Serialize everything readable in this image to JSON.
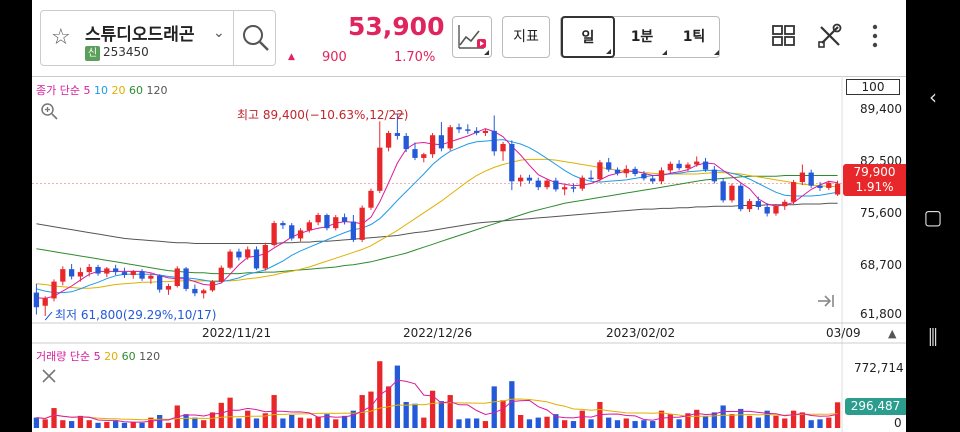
{
  "stock": {
    "name": "스튜디오드래곤",
    "market_badge": "신",
    "code": "253450",
    "price": "53,900",
    "change": "900",
    "change_rate": "1.70%"
  },
  "toolbar": {
    "indicator_label": "지표",
    "periods": [
      {
        "label": "일",
        "selected": true
      },
      {
        "label": "1분",
        "selected": false
      },
      {
        "label": "1틱",
        "selected": false
      }
    ]
  },
  "price_panel": {
    "legend_prefix": "종가 단순",
    "ma_periods": [
      {
        "label": "5",
        "color": "#d81b9e"
      },
      {
        "label": "10",
        "color": "#1e9be8"
      },
      {
        "label": "20",
        "color": "#e0b000"
      },
      {
        "label": "60",
        "color": "#2e8b2e"
      },
      {
        "label": "120",
        "color": "#555555"
      }
    ],
    "zoom_value": "100",
    "y_labels": [
      "89,400",
      "82,500",
      "75,600",
      "68,700",
      "61,800"
    ],
    "last_price": "79,900",
    "last_rate": "1.91%",
    "high_annotation": "최고 89,400(−10.63%,12/22)",
    "low_annotation": "최저 61,800(29.29%,10/17)",
    "x_labels": [
      "2022/11/21",
      "2022/12/26",
      "2023/02/02",
      "03/09"
    ]
  },
  "volume_panel": {
    "legend_prefix": "거래량 단순",
    "ma_periods": [
      {
        "label": "5",
        "color": "#d81b9e"
      },
      {
        "label": "20",
        "color": "#e0b000"
      },
      {
        "label": "60",
        "color": "#2e8b2e"
      },
      {
        "label": "120",
        "color": "#555555"
      }
    ],
    "y_labels": [
      "772,714",
      "0"
    ],
    "last_volume": "296,487"
  },
  "colors": {
    "up": "#e8272b",
    "down": "#2459d8",
    "accent": "#e0245e"
  },
  "chart_data": {
    "type": "candlestick",
    "ylim": [
      61800,
      89400
    ],
    "ohlc": [
      [
        65000,
        66200,
        62000,
        63000
      ],
      [
        63200,
        64500,
        61800,
        64200
      ],
      [
        64200,
        66800,
        63800,
        66500
      ],
      [
        66500,
        68600,
        66000,
        68200
      ],
      [
        68200,
        68900,
        66800,
        67200
      ],
      [
        67200,
        68400,
        66500,
        67800
      ],
      [
        67800,
        68900,
        67200,
        68500
      ],
      [
        68500,
        68800,
        67300,
        67600
      ],
      [
        67600,
        68500,
        67100,
        68300
      ],
      [
        68300,
        68800,
        67400,
        67800
      ],
      [
        67800,
        68400,
        67000,
        67400
      ],
      [
        67400,
        68100,
        66900,
        67900
      ],
      [
        67900,
        68200,
        66600,
        66900
      ],
      [
        66900,
        67600,
        66200,
        67300
      ],
      [
        67300,
        67500,
        65000,
        65400
      ],
      [
        65400,
        66200,
        64700,
        65900
      ],
      [
        65900,
        68600,
        65700,
        68300
      ],
      [
        68300,
        68500,
        65200,
        65500
      ],
      [
        65500,
        66100,
        64500,
        64900
      ],
      [
        64900,
        65500,
        64200,
        65300
      ],
      [
        65300,
        66700,
        65100,
        66500
      ],
      [
        66500,
        68700,
        66300,
        68400
      ],
      [
        68400,
        70900,
        68200,
        70600
      ],
      [
        70600,
        71000,
        69400,
        69800
      ],
      [
        69800,
        71300,
        69500,
        70900
      ],
      [
        70900,
        71300,
        68100,
        68300
      ],
      [
        68300,
        71800,
        68000,
        71500
      ],
      [
        71500,
        74800,
        71300,
        74500
      ],
      [
        74500,
        74800,
        73700,
        74200
      ],
      [
        74200,
        74500,
        72100,
        72400
      ],
      [
        72400,
        73800,
        72000,
        73500
      ],
      [
        73500,
        74900,
        73200,
        74600
      ],
      [
        74600,
        75900,
        74200,
        75600
      ],
      [
        75600,
        75800,
        73500,
        73800
      ],
      [
        73800,
        75600,
        73500,
        75300
      ],
      [
        75300,
        75800,
        74300,
        74700
      ],
      [
        74700,
        75600,
        71900,
        72200
      ],
      [
        72200,
        76900,
        71900,
        76600
      ],
      [
        76600,
        79200,
        76300,
        78900
      ],
      [
        78900,
        88400,
        78600,
        84800
      ],
      [
        84800,
        87100,
        84300,
        86800
      ],
      [
        86800,
        89400,
        85900,
        86400
      ],
      [
        86400,
        86800,
        84200,
        84600
      ],
      [
        84600,
        85500,
        83100,
        83400
      ],
      [
        83400,
        84100,
        82800,
        83900
      ],
      [
        83900,
        86800,
        83400,
        86500
      ],
      [
        86500,
        88300,
        84300,
        84700
      ],
      [
        84700,
        87900,
        84400,
        87600
      ],
      [
        87600,
        88100,
        86800,
        87300
      ],
      [
        87300,
        88000,
        86700,
        87100
      ],
      [
        87100,
        87600,
        86500,
        86800
      ],
      [
        86800,
        87400,
        86400,
        87100
      ],
      [
        87100,
        89200,
        83700,
        84300
      ],
      [
        84300,
        85600,
        83000,
        85300
      ],
      [
        85300,
        85800,
        79000,
        80200
      ],
      [
        80200,
        81100,
        79500,
        80700
      ],
      [
        80700,
        81100,
        79900,
        80300
      ],
      [
        80300,
        80700,
        79000,
        79400
      ],
      [
        79400,
        80600,
        79100,
        80300
      ],
      [
        80300,
        80700,
        78800,
        79100
      ],
      [
        79100,
        79700,
        78300,
        79400
      ],
      [
        79400,
        79900,
        78700,
        79200
      ],
      [
        79200,
        81000,
        78900,
        80700
      ],
      [
        80700,
        81700,
        80300,
        80500
      ],
      [
        80500,
        83100,
        80200,
        82800
      ],
      [
        82800,
        83400,
        81500,
        81800
      ],
      [
        81800,
        82100,
        81000,
        81300
      ],
      [
        81300,
        82400,
        80700,
        81900
      ],
      [
        81900,
        82200,
        80900,
        81200
      ],
      [
        81200,
        81600,
        80300,
        80600
      ],
      [
        80600,
        81100,
        79900,
        80200
      ],
      [
        80200,
        82100,
        79800,
        81700
      ],
      [
        81700,
        82900,
        81300,
        82600
      ],
      [
        82600,
        83100,
        81700,
        82000
      ],
      [
        82000,
        82800,
        81600,
        82500
      ],
      [
        82500,
        83600,
        82200,
        82900
      ],
      [
        82900,
        83400,
        81500,
        81800
      ],
      [
        81800,
        82300,
        79900,
        80200
      ],
      [
        80200,
        80600,
        77300,
        77600
      ],
      [
        77600,
        79900,
        77300,
        79600
      ],
      [
        79600,
        79900,
        76100,
        76400
      ],
      [
        76400,
        77800,
        76000,
        77500
      ],
      [
        77500,
        78100,
        76300,
        76700
      ],
      [
        76700,
        77200,
        75400,
        75800
      ],
      [
        75800,
        77100,
        75500,
        76800
      ],
      [
        76800,
        77700,
        76300,
        77400
      ],
      [
        77400,
        80400,
        77100,
        80100
      ],
      [
        80100,
        82500,
        79700,
        81400
      ],
      [
        81400,
        81800,
        79300,
        79600
      ],
      [
        79600,
        80100,
        78900,
        79300
      ],
      [
        79300,
        80200,
        79000,
        80000
      ],
      [
        78400,
        80300,
        78200,
        79900
      ]
    ],
    "ma5": [
      64300,
      64200,
      64500,
      65200,
      65900,
      66700,
      67500,
      67900,
      67900,
      67900,
      67900,
      67900,
      67900,
      67700,
      67300,
      67000,
      66900,
      66900,
      66500,
      66100,
      66000,
      66300,
      67500,
      68800,
      69800,
      70000,
      70300,
      71100,
      71800,
      72600,
      73100,
      73500,
      73800,
      74000,
      74500,
      74700,
      74600,
      74400,
      75300,
      77400,
      80000,
      82700,
      84600,
      85400,
      85500,
      85300,
      85200,
      85600,
      86000,
      86400,
      86900,
      87400,
      87000,
      86300,
      85000,
      83800,
      82400,
      81100,
      80500,
      80000,
      79800,
      79600,
      79700,
      79900,
      80400,
      81000,
      81300,
      81600,
      81600,
      81300,
      81000,
      81000,
      81300,
      81500,
      81800,
      82400,
      82700,
      82600,
      81700,
      80900,
      80000,
      79200,
      77800,
      77100,
      76800,
      77000,
      77300,
      78200,
      79100,
      79700,
      80200,
      80000
    ],
    "ma10": [
      65500,
      65200,
      65000,
      65000,
      65100,
      65500,
      66000,
      66400,
      66900,
      67300,
      67500,
      67500,
      67500,
      67500,
      67400,
      67200,
      67100,
      67000,
      66900,
      66700,
      66500,
      66500,
      66700,
      67000,
      67500,
      67800,
      68100,
      68700,
      69300,
      70100,
      70700,
      71200,
      71700,
      72200,
      72700,
      73200,
      73600,
      73800,
      74300,
      75100,
      76300,
      77600,
      78800,
      80000,
      81200,
      82500,
      83500,
      84300,
      84800,
      85300,
      85600,
      85700,
      85800,
      85900,
      85600,
      85300,
      84800,
      84100,
      83300,
      82500,
      81700,
      81000,
      80500,
      80200,
      80100,
      80200,
      80300,
      80400,
      80600,
      80800,
      81000,
      81100,
      81200,
      81300,
      81500,
      81600,
      81700,
      81700,
      81600,
      81300,
      81000,
      80500,
      79900,
      79300,
      78700,
      78300,
      78200,
      78200,
      78200,
      78300,
      78500,
      78700
    ],
    "ma20": [
      66200,
      66100,
      65900,
      65800,
      65700,
      65600,
      65600,
      65700,
      65900,
      66100,
      66200,
      66300,
      66400,
      66400,
      66500,
      66500,
      66600,
      66600,
      66600,
      66600,
      66600,
      66600,
      66600,
      66700,
      66900,
      67000,
      67200,
      67400,
      67700,
      67900,
      68200,
      68500,
      68900,
      69300,
      69700,
      70100,
      70500,
      70900,
      71400,
      72100,
      72800,
      73500,
      74300,
      75100,
      75900,
      76700,
      77500,
      78400,
      79300,
      80200,
      81000,
      81600,
      82100,
      82500,
      82800,
      83100,
      83200,
      83200,
      83200,
      83100,
      82900,
      82700,
      82500,
      82300,
      82100,
      81900,
      81700,
      81600,
      81500,
      81400,
      81300,
      81200,
      81200,
      81200,
      81200,
      81200,
      81300,
      81400,
      81400,
      81300,
      81200,
      81000,
      80800,
      80600,
      80400,
      80200,
      80000,
      79800,
      79700,
      79600,
      79500,
      79500
    ],
    "ma60": [
      71000,
      70800,
      70600,
      70400,
      70200,
      70000,
      69800,
      69600,
      69400,
      69200,
      69000,
      68800,
      68600,
      68400,
      68200,
      68000,
      67900,
      67800,
      67700,
      67700,
      67600,
      67600,
      67600,
      67600,
      67700,
      67700,
      67800,
      67800,
      67900,
      68000,
      68100,
      68200,
      68300,
      68400,
      68500,
      68700,
      68800,
      69000,
      69200,
      69500,
      69800,
      70100,
      70400,
      70800,
      71200,
      71600,
      72000,
      72400,
      72800,
      73200,
      73600,
      74000,
      74400,
      74800,
      75200,
      75600,
      76000,
      76300,
      76600,
      76900,
      77200,
      77400,
      77600,
      77800,
      78000,
      78200,
      78400,
      78600,
      78800,
      79000,
      79200,
      79400,
      79600,
      79800,
      80000,
      80200,
      80400,
      80500,
      80600,
      80700,
      80800,
      80900,
      80900,
      80900,
      80900,
      81000,
      81000,
      81000,
      81000,
      81000,
      81000,
      81000
    ],
    "ma120": [
      74400,
      74200,
      74000,
      73800,
      73600,
      73400,
      73200,
      73000,
      72800,
      72600,
      72400,
      72300,
      72200,
      72100,
      72000,
      71900,
      71800,
      71800,
      71700,
      71700,
      71700,
      71700,
      71700,
      71700,
      71700,
      71700,
      71700,
      71700,
      71800,
      71800,
      71900,
      71900,
      72000,
      72000,
      72100,
      72200,
      72300,
      72400,
      72500,
      72600,
      72700,
      72800,
      73000,
      73200,
      73300,
      73500,
      73700,
      73900,
      74100,
      74300,
      74500,
      74600,
      74700,
      74800,
      74900,
      75000,
      75100,
      75200,
      75300,
      75400,
      75500,
      75600,
      75700,
      75800,
      75900,
      76000,
      76100,
      76200,
      76300,
      76400,
      76400,
      76500,
      76500,
      76600,
      76600,
      76700,
      76700,
      76800,
      76800,
      76800,
      76900,
      76900,
      76900,
      77000,
      77000,
      77000,
      77000,
      77100,
      77100,
      77100,
      77200,
      77200
    ],
    "volume_ylim": [
      0,
      772714
    ],
    "volume": [
      120000,
      100000,
      230000,
      90000,
      80000,
      140000,
      90000,
      60000,
      70000,
      80000,
      60000,
      70000,
      60000,
      120000,
      150000,
      60000,
      260000,
      160000,
      120000,
      90000,
      180000,
      290000,
      350000,
      110000,
      200000,
      110000,
      170000,
      380000,
      110000,
      150000,
      120000,
      110000,
      130000,
      160000,
      100000,
      140000,
      200000,
      380000,
      420000,
      770000,
      480000,
      720000,
      300000,
      280000,
      120000,
      430000,
      310000,
      380000,
      100000,
      110000,
      110000,
      80000,
      480000,
      320000,
      540000,
      150000,
      100000,
      120000,
      130000,
      160000,
      90000,
      80000,
      200000,
      100000,
      300000,
      120000,
      90000,
      110000,
      80000,
      90000,
      80000,
      200000,
      160000,
      100000,
      170000,
      210000,
      140000,
      180000,
      260000,
      160000,
      220000,
      140000,
      120000,
      200000,
      140000,
      110000,
      200000,
      180000,
      90000,
      100000,
      120000,
      296487
    ]
  }
}
